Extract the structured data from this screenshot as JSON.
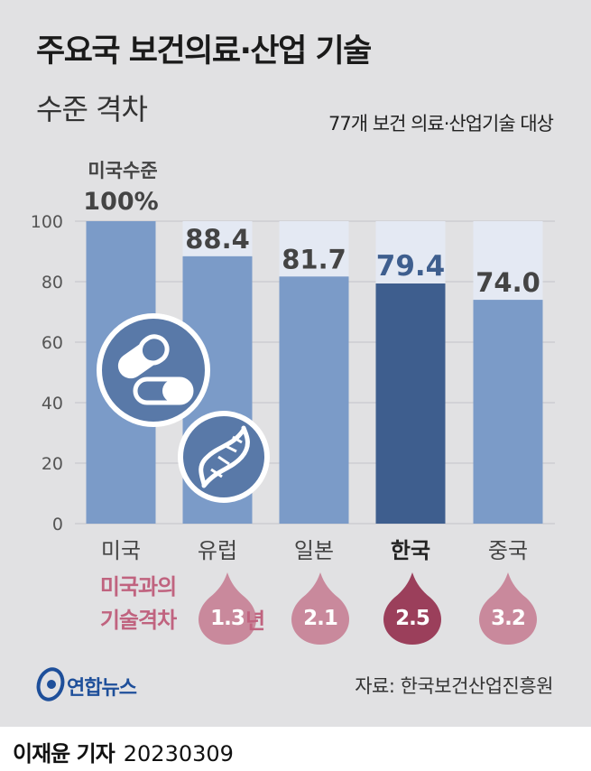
{
  "header": {
    "title": "주요국 보건의료·산업 기술",
    "subtitle": "수준 격차",
    "scope": "77개 보건 의료·산업기술 대상"
  },
  "chart_data": {
    "type": "bar",
    "categories": [
      "미국",
      "유럽",
      "일본",
      "한국",
      "중국"
    ],
    "values": [
      100,
      88.4,
      81.7,
      79.4,
      74.0
    ],
    "value_labels": [
      "100%",
      "88.4",
      "81.7",
      "79.4",
      "74.0"
    ],
    "reference_label": "미국수준",
    "highlight": "한국",
    "ylim": [
      0,
      100
    ],
    "yticks": [
      0,
      20,
      40,
      60,
      80,
      100
    ],
    "grid": true,
    "colors": {
      "bar": "#7b9bc8",
      "highlight": "#3e5e8e",
      "background_column": "#e4e9f3",
      "highlight_text": "#3e5e8e",
      "text": "#444444"
    }
  },
  "gap": {
    "title_lines": [
      "미국과의",
      "기술격차"
    ],
    "values": [
      "1.3",
      "2.1",
      "2.5",
      "3.2"
    ],
    "unit": "년",
    "colors": {
      "normal": "#c9899c",
      "highlight": "#9b3f5b",
      "label": "#c0637f"
    }
  },
  "icons": [
    "capsule-icon",
    "dna-icon"
  ],
  "logo": {
    "text": "연합뉴스",
    "icon": "yonhap-logo-icon"
  },
  "source": "자료: 한국보건산업진흥원",
  "footer": {
    "reporter": "이재윤 기자",
    "date": "20230309"
  }
}
